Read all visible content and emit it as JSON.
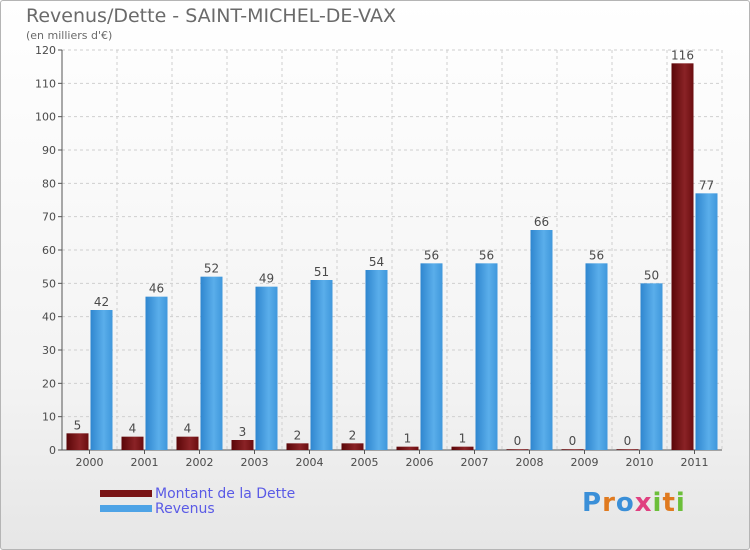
{
  "title": "Revenus/Dette - SAINT-MICHEL-DE-VAX",
  "subtitle": "(en milliers d'€)",
  "colors": {
    "dette": "#7a1416",
    "revenus": "#4ea3e6"
  },
  "legend": [
    {
      "label": "Montant de la Dette",
      "color": "#7a1416"
    },
    {
      "label": "Revenus",
      "color": "#4ea3e6"
    }
  ],
  "logo": {
    "letters": [
      "P",
      "r",
      "o",
      "x",
      "i",
      "t",
      "i"
    ],
    "colors": [
      "#3a8fd8",
      "#e07a1f",
      "#3a8fd8",
      "#e04080",
      "#6cbf3a",
      "#e07a1f",
      "#6cbf3a"
    ]
  },
  "chart_data": {
    "type": "bar",
    "title": "Revenus/Dette - SAINT-MICHEL-DE-VAX",
    "subtitle": "(en milliers d'€)",
    "categories": [
      "2000",
      "2001",
      "2002",
      "2003",
      "2004",
      "2005",
      "2006",
      "2007",
      "2008",
      "2009",
      "2010",
      "2011"
    ],
    "series": [
      {
        "name": "Montant de la Dette",
        "values": [
          5,
          4,
          4,
          3,
          2,
          2,
          1,
          1,
          0,
          0,
          0,
          116
        ]
      },
      {
        "name": "Revenus",
        "values": [
          42,
          46,
          52,
          49,
          51,
          54,
          56,
          56,
          66,
          56,
          50,
          77
        ]
      }
    ],
    "data_labels": {
      "Montant de la Dette": [
        "5",
        "4",
        "4",
        "3",
        "2",
        "2",
        "1",
        "1",
        "0",
        "0",
        "0",
        "116"
      ],
      "Revenus": [
        "42",
        "46",
        "52",
        "49",
        "51",
        "54",
        "56",
        "56",
        "66",
        "56",
        "50",
        "77"
      ]
    },
    "ylim": [
      0,
      120
    ],
    "yticks": [
      0,
      10,
      20,
      30,
      40,
      50,
      60,
      70,
      80,
      90,
      100,
      110,
      120
    ],
    "grid": true,
    "legend_position": "bottom-left"
  }
}
